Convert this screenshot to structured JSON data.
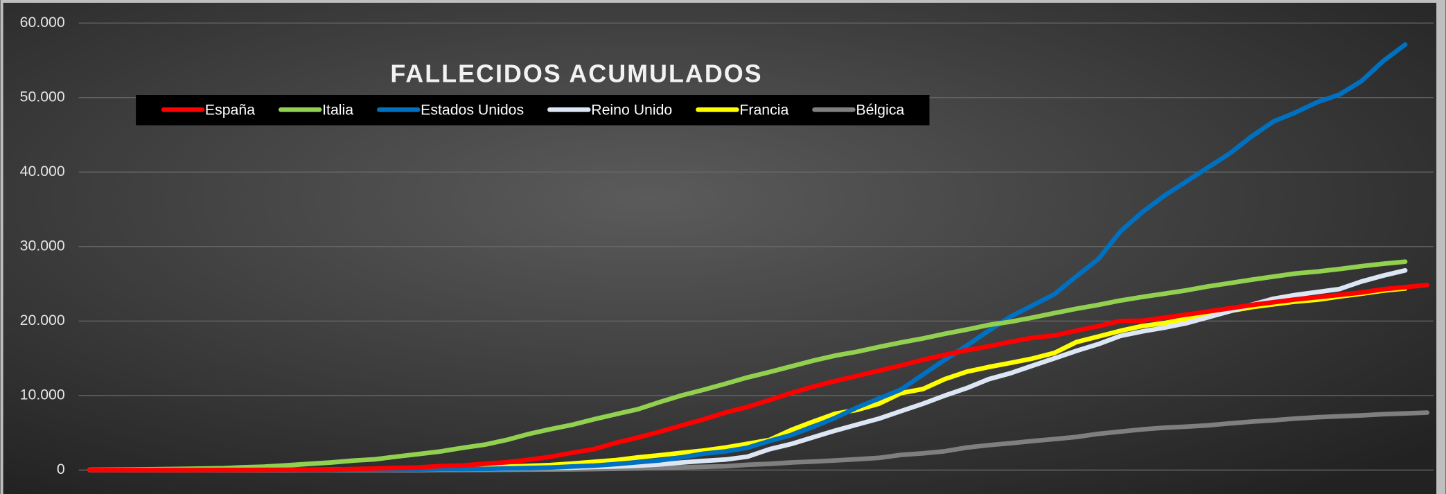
{
  "chart_data": {
    "type": "line",
    "title": "FALLECIDOS ACUMULADOS",
    "categories": [
      null,
      null,
      null,
      null,
      null,
      null,
      null,
      null,
      null,
      null,
      null,
      null,
      null,
      null,
      null,
      null,
      null,
      null,
      null,
      null,
      null,
      null,
      null,
      null,
      null,
      null,
      null,
      null,
      null,
      null,
      null,
      null,
      null,
      null,
      null,
      null,
      null,
      null,
      null,
      null,
      null,
      null,
      null,
      null,
      null,
      null,
      null,
      null,
      null,
      null,
      null,
      null,
      null,
      null,
      null,
      null,
      null,
      null,
      null,
      null,
      null,
      null
    ],
    "ylim": [
      0,
      60000
    ],
    "yticks": [
      0,
      {
        "value": 10000,
        "label": "10.000"
      },
      {
        "value": 20000,
        "label": "20.000"
      },
      {
        "value": 30000,
        "label": "30.000"
      },
      {
        "value": 40000,
        "label": "40.000"
      },
      {
        "value": 50000,
        "label": "50.000"
      },
      {
        "value": 60000,
        "label": "60.000"
      }
    ],
    "grid": true,
    "legend": "top",
    "series": [
      {
        "name": "España",
        "color": "#ff0000",
        "values": [
          0,
          0,
          1,
          2,
          3,
          5,
          10,
          17,
          28,
          35,
          54,
          55,
          133,
          195,
          289,
          342,
          533,
          623,
          830,
          1043,
          1375,
          1772,
          2311,
          2808,
          3647,
          4365,
          5138,
          5982,
          6803,
          7716,
          8464,
          9387,
          10348,
          11198,
          11947,
          12641,
          13341,
          14045,
          14792,
          15447,
          16081,
          16606,
          17209,
          17756,
          18056,
          18708,
          19315,
          20002,
          20043,
          20453,
          20852,
          21282,
          21717,
          22157,
          22524,
          22902,
          23190,
          23521,
          23822,
          24275,
          24543,
          24824
        ]
      },
      {
        "name": "Italia",
        "color": "#92d050",
        "values": [
          34,
          52,
          79,
          107,
          148,
          197,
          233,
          366,
          463,
          631,
          827,
          1016,
          1266,
          1441,
          1809,
          2158,
          2503,
          2978,
          3405,
          4032,
          4825,
          5476,
          6077,
          6820,
          7503,
          8165,
          9134,
          10023,
          10779,
          11591,
          12428,
          13155,
          13915,
          14681,
          15362,
          15887,
          16523,
          17127,
          17669,
          18279,
          18849,
          19468,
          19899,
          20465,
          21067,
          21645,
          22170,
          22745,
          23227,
          23660,
          24114,
          24648,
          25085,
          25549,
          25969,
          26384,
          26644,
          26977,
          27359,
          27682,
          27967,
          null
        ]
      },
      {
        "name": "Estados Unidos",
        "color": "#0070c0",
        "values": [
          1,
          6,
          9,
          11,
          12,
          14,
          17,
          21,
          22,
          28,
          33,
          38,
          41,
          48,
          57,
          69,
          85,
          108,
          150,
          205,
          260,
          340,
          470,
          590,
          800,
          1050,
          1300,
          1700,
          2200,
          2500,
          3000,
          3900,
          4700,
          5800,
          7000,
          8400,
          9600,
          10800,
          12800,
          14800,
          16700,
          18700,
          20600,
          22100,
          23600,
          26000,
          28300,
          32000,
          34600,
          36800,
          38700,
          40600,
          42500,
          44800,
          46800,
          48000,
          49400,
          50400,
          52200,
          54900,
          57100,
          null
        ]
      },
      {
        "name": "Reino Unido",
        "color": "#dce6f4",
        "values": [
          0,
          0,
          0,
          0,
          1,
          2,
          2,
          3,
          4,
          6,
          8,
          10,
          11,
          21,
          35,
          55,
          71,
          104,
          144,
          177,
          233,
          281,
          335,
          422,
          465,
          578,
          759,
          1019,
          1228,
          1408,
          1789,
          2800,
          3500,
          4400,
          5300,
          6100,
          6900,
          7900,
          8900,
          10000,
          11000,
          12200,
          13000,
          14000,
          15000,
          16000,
          16900,
          18000,
          18600,
          19100,
          19700,
          20500,
          21300,
          22200,
          23000,
          23500,
          23900,
          24300,
          25300,
          26100,
          26800,
          null
        ]
      },
      {
        "name": "Francia",
        "color": "#ffff00",
        "values": [
          2,
          3,
          4,
          4,
          6,
          9,
          11,
          19,
          19,
          33,
          48,
          61,
          79,
          91,
          127,
          148,
          175,
          264,
          372,
          450,
          562,
          674,
          860,
          1100,
          1331,
          1696,
          1995,
          2314,
          2606,
          3024,
          3523,
          4032,
          5387,
          6507,
          7560,
          8078,
          8911,
          10328,
          10869,
          12210,
          13197,
          13832,
          14393,
          14967,
          15729,
          17167,
          17920,
          18681,
          19323,
          19718,
          20265,
          20796,
          21340,
          21856,
          22245,
          22614,
          22856,
          23293,
          23660,
          24087,
          24376,
          null
        ]
      },
      {
        "name": "Bélgica",
        "color": "#7f7f7f",
        "values": [
          0,
          0,
          0,
          0,
          0,
          0,
          0,
          0,
          0,
          0,
          3,
          3,
          3,
          4,
          4,
          5,
          10,
          14,
          21,
          37,
          67,
          75,
          88,
          122,
          178,
          220,
          289,
          353,
          431,
          513,
          705,
          828,
          1011,
          1143,
          1283,
          1447,
          1632,
          2035,
          2240,
          2523,
          3019,
          3346,
          3600,
          3903,
          4157,
          4440,
          4857,
          5163,
          5453,
          5683,
          5828,
          5998,
          6262,
          6490,
          6679,
          6917,
          7094,
          7207,
          7331,
          7501,
          7594,
          7703
        ]
      }
    ]
  }
}
